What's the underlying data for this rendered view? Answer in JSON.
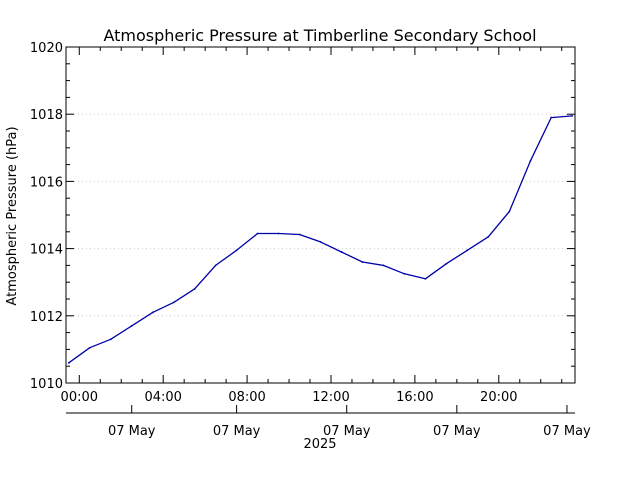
{
  "chart_data": {
    "type": "line",
    "title": "Atmospheric Pressure at Timberline Secondary School",
    "ylabel": "Atmospheric Pressure (hPa)",
    "year_label": "2025",
    "ylim": [
      1010,
      1020
    ],
    "yticks": [
      1010,
      1012,
      1014,
      1016,
      1018,
      1020
    ],
    "xlim": [
      "2025-05-06T23:22",
      "2025-05-07T23:38"
    ],
    "time_ticks": [
      {
        "t": "2025-05-07T00:00",
        "label": "00:00"
      },
      {
        "t": "2025-05-07T04:00",
        "label": "04:00"
      },
      {
        "t": "2025-05-07T08:00",
        "label": "08:00"
      },
      {
        "t": "2025-05-07T12:00",
        "label": "12:00"
      },
      {
        "t": "2025-05-07T16:00",
        "label": "16:00"
      },
      {
        "t": "2025-05-07T20:00",
        "label": "20:00"
      }
    ],
    "date_ticks": [
      {
        "t": "2025-05-07T02:30",
        "label": "07 May"
      },
      {
        "t": "2025-05-07T07:30",
        "label": "07 May"
      },
      {
        "t": "2025-05-07T12:45",
        "label": "07 May"
      },
      {
        "t": "2025-05-07T18:00",
        "label": "07 May"
      },
      {
        "t": "2025-05-07T23:15",
        "label": "07 May"
      }
    ],
    "grid": true,
    "colors": {
      "line": "#0000aa",
      "grid": "#cccccc",
      "axis": "#000000"
    },
    "series": [
      {
        "x": [
          "2025-05-06T23:30",
          "2025-05-07T00:30",
          "2025-05-07T01:30",
          "2025-05-07T02:30",
          "2025-05-07T03:30",
          "2025-05-07T04:30",
          "2025-05-07T05:30",
          "2025-05-07T06:30",
          "2025-05-07T07:30",
          "2025-05-07T08:30",
          "2025-05-07T09:30",
          "2025-05-07T10:30",
          "2025-05-07T11:30",
          "2025-05-07T12:30",
          "2025-05-07T13:30",
          "2025-05-07T14:30",
          "2025-05-07T15:30",
          "2025-05-07T16:30",
          "2025-05-07T17:30",
          "2025-05-07T18:30",
          "2025-05-07T19:30",
          "2025-05-07T20:30",
          "2025-05-07T21:30",
          "2025-05-07T22:30",
          "2025-05-07T23:30"
        ],
        "y": [
          1010.6,
          1011.05,
          1011.3,
          1011.7,
          1012.1,
          1012.4,
          1012.8,
          1013.5,
          1013.95,
          1014.45,
          1014.45,
          1014.42,
          1014.2,
          1013.9,
          1013.6,
          1013.5,
          1013.25,
          1013.1,
          1013.55,
          1013.95,
          1014.35,
          1015.1,
          1016.6,
          1017.9,
          1017.95
        ]
      }
    ]
  }
}
